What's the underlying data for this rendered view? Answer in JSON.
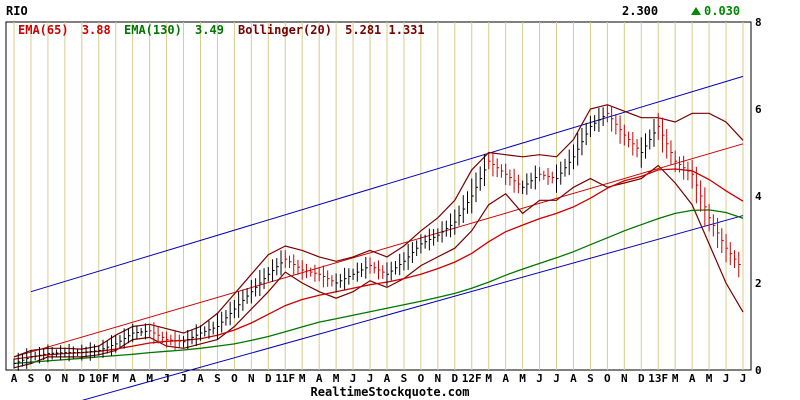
{
  "chart_data": {
    "type": "line",
    "title": "RIO",
    "last_price": "2.300",
    "change": "0.030",
    "indicators": [
      {
        "name": "EMA(65)",
        "value": "3.88",
        "color": "#cc0000"
      },
      {
        "name": "EMA(130)",
        "value": "3.49",
        "color": "#007700"
      },
      {
        "name": "Bollinger(20)",
        "value": "5.281 1.331",
        "color": "#770000"
      }
    ],
    "ylim": [
      0,
      8
    ],
    "y_ticks": [
      "0",
      "2",
      "4",
      "6",
      "8"
    ],
    "x_ticks": [
      "A",
      "S",
      "O",
      "N",
      "D",
      "10F",
      "M",
      "A",
      "M",
      "J",
      "J",
      "A",
      "S",
      "O",
      "N",
      "D",
      "11F",
      "M",
      "A",
      "M",
      "J",
      "J",
      "A",
      "S",
      "O",
      "N",
      "D",
      "12F",
      "M",
      "A",
      "M",
      "J",
      "J",
      "A",
      "S",
      "O",
      "N",
      "D",
      "13F",
      "M",
      "A",
      "M",
      "J",
      "J"
    ],
    "n_points": 44,
    "price_series": [
      0.15,
      0.3,
      0.38,
      0.4,
      0.4,
      0.45,
      0.6,
      0.85,
      0.9,
      0.7,
      0.65,
      0.85,
      1.0,
      1.4,
      1.8,
      2.2,
      2.55,
      2.3,
      2.2,
      2.0,
      2.2,
      2.4,
      2.2,
      2.5,
      2.9,
      3.1,
      3.4,
      4.0,
      4.8,
      4.5,
      4.2,
      4.5,
      4.4,
      4.9,
      5.6,
      5.9,
      5.4,
      5.0,
      5.6,
      4.8,
      4.5,
      3.5,
      2.8,
      2.3
    ],
    "series": [
      {
        "name": "EMA(65)",
        "values": [
          0.25,
          0.3,
          0.35,
          0.38,
          0.4,
          0.43,
          0.48,
          0.55,
          0.62,
          0.66,
          0.68,
          0.72,
          0.8,
          0.92,
          1.08,
          1.28,
          1.48,
          1.62,
          1.72,
          1.8,
          1.88,
          1.96,
          2.02,
          2.1,
          2.2,
          2.33,
          2.48,
          2.68,
          2.95,
          3.18,
          3.33,
          3.48,
          3.6,
          3.75,
          3.95,
          4.18,
          4.35,
          4.45,
          4.6,
          4.62,
          4.58,
          4.38,
          4.12,
          3.88
        ]
      },
      {
        "name": "EMA(130)",
        "values": [
          0.15,
          0.18,
          0.21,
          0.24,
          0.27,
          0.3,
          0.33,
          0.36,
          0.4,
          0.43,
          0.46,
          0.5,
          0.55,
          0.6,
          0.68,
          0.77,
          0.88,
          0.99,
          1.1,
          1.18,
          1.26,
          1.34,
          1.42,
          1.5,
          1.58,
          1.67,
          1.76,
          1.88,
          2.02,
          2.18,
          2.32,
          2.45,
          2.58,
          2.72,
          2.88,
          3.04,
          3.2,
          3.34,
          3.48,
          3.6,
          3.67,
          3.68,
          3.62,
          3.49
        ]
      }
    ],
    "bollinger_upper": [
      0.3,
      0.45,
      0.5,
      0.5,
      0.48,
      0.55,
      0.8,
      1.0,
      1.05,
      0.95,
      0.85,
      1.0,
      1.3,
      1.75,
      2.2,
      2.65,
      2.85,
      2.75,
      2.6,
      2.5,
      2.6,
      2.75,
      2.6,
      2.85,
      3.2,
      3.5,
      3.9,
      4.6,
      5.0,
      4.95,
      4.9,
      4.95,
      4.9,
      5.3,
      6.0,
      6.1,
      5.95,
      5.8,
      5.8,
      5.7,
      5.9,
      5.9,
      5.7,
      5.281
    ],
    "bollinger_lower": [
      0.05,
      0.15,
      0.3,
      0.3,
      0.3,
      0.35,
      0.45,
      0.7,
      0.75,
      0.55,
      0.5,
      0.6,
      0.7,
      1.0,
      1.4,
      1.8,
      2.25,
      2.0,
      1.8,
      1.65,
      1.8,
      2.05,
      1.9,
      2.1,
      2.4,
      2.6,
      2.8,
      3.2,
      3.8,
      4.05,
      3.6,
      3.9,
      3.9,
      4.2,
      4.4,
      4.2,
      4.3,
      4.4,
      4.7,
      4.3,
      3.8,
      2.9,
      2.0,
      1.331
    ],
    "grid": true
  },
  "footer": {
    "watermark": "RealtimeStockquote.com"
  },
  "style": {
    "channel_color": "#0000bb",
    "price_color": "#000000",
    "price_down_color": "#cc0000",
    "grid_color": "#d8cc8a",
    "up_arrow_color": "#008800"
  }
}
